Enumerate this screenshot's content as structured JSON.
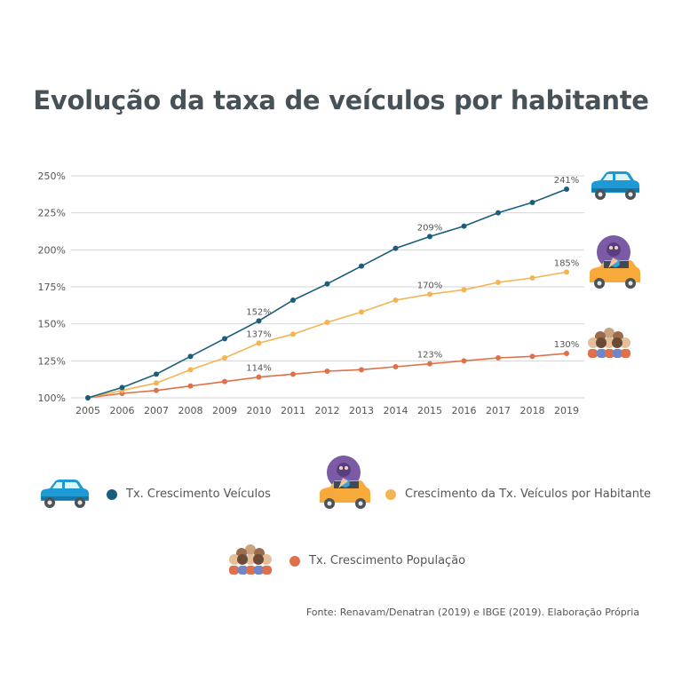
{
  "title": "Evolução da taxa de veículos por habitante",
  "source": "Fonte: Renavam/Denatran (2019) e IBGE (2019). Elaboração Própria",
  "chart_data": {
    "type": "line",
    "x": [
      2005,
      2006,
      2007,
      2008,
      2009,
      2010,
      2011,
      2012,
      2013,
      2014,
      2015,
      2016,
      2017,
      2018,
      2019
    ],
    "ylim": [
      100,
      250
    ],
    "yticks": [
      "100%",
      "125%",
      "150%",
      "175%",
      "200%",
      "225%",
      "250%"
    ],
    "ytick_values": [
      100,
      125,
      150,
      175,
      200,
      225,
      250
    ],
    "grid": true,
    "series": [
      {
        "name": "Tx. Crescimento Veículos",
        "color": "#1a5e7e",
        "icon": "car-icon",
        "values": [
          100,
          107,
          116,
          128,
          140,
          152,
          166,
          177,
          189,
          201,
          209,
          216,
          225,
          232,
          241
        ],
        "labels": [
          {
            "index": 5,
            "text": "152%"
          },
          {
            "index": 10,
            "text": "209%"
          },
          {
            "index": 14,
            "text": "241%"
          }
        ]
      },
      {
        "name": "Crescimento da Tx. Veículos por Habitante",
        "color": "#f5b454",
        "icon": "car-with-person-icon",
        "values": [
          100,
          105,
          110,
          119,
          127,
          137,
          143,
          151,
          158,
          166,
          170,
          173,
          178,
          181,
          185
        ],
        "labels": [
          {
            "index": 5,
            "text": "137%"
          },
          {
            "index": 10,
            "text": "170%"
          },
          {
            "index": 14,
            "text": "185%"
          }
        ]
      },
      {
        "name": "Tx. Crescimento População",
        "color": "#e0704a",
        "icon": "people-group-icon",
        "values": [
          100,
          103,
          105,
          108,
          111,
          114,
          116,
          118,
          119,
          121,
          123,
          125,
          127,
          128,
          130
        ],
        "labels": [
          {
            "index": 5,
            "text": "114%"
          },
          {
            "index": 10,
            "text": "123%"
          },
          {
            "index": 14,
            "text": "130%"
          }
        ]
      }
    ]
  }
}
